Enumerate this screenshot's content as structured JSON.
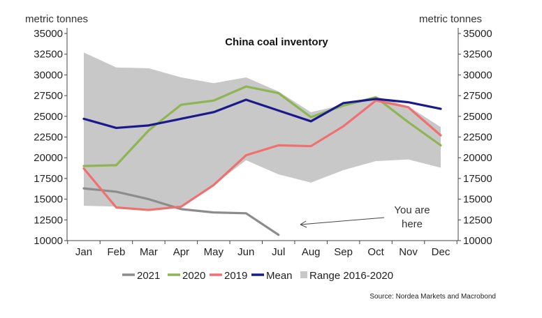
{
  "chart_data": {
    "type": "line",
    "title": "China coal inventory",
    "ylabel_left": "metric tonnes",
    "ylabel_right": "metric tonnes",
    "ylim": [
      10000,
      35000
    ],
    "yticks": [
      10000,
      12500,
      15000,
      17500,
      20000,
      22500,
      25000,
      27500,
      30000,
      32500,
      35000
    ],
    "categories": [
      "Jan",
      "Feb",
      "Mar",
      "Apr",
      "May",
      "Jun",
      "Jul",
      "Aug",
      "Sep",
      "Oct",
      "Nov",
      "Dec"
    ],
    "range": {
      "name": "Range 2016-2020",
      "color": "#c8c8c8",
      "high": [
        32700,
        30900,
        30800,
        29700,
        29000,
        29700,
        28000,
        25500,
        26400,
        27400,
        26200,
        23700
      ],
      "low": [
        14200,
        14100,
        13700,
        14100,
        16700,
        19700,
        18000,
        17000,
        18500,
        19600,
        19800,
        18800
      ]
    },
    "series": [
      {
        "name": "2021",
        "color": "#8c8c8c",
        "values": [
          16300,
          15900,
          15000,
          13800,
          13400,
          13300,
          10700,
          null,
          null,
          null,
          null,
          null
        ]
      },
      {
        "name": "2020",
        "color": "#8db552",
        "values": [
          19000,
          19100,
          23300,
          26400,
          26900,
          28600,
          27800,
          24900,
          26300,
          27300,
          24300,
          21500
        ]
      },
      {
        "name": "2019",
        "color": "#f07070",
        "values": [
          18700,
          14000,
          13700,
          14100,
          16700,
          20300,
          21500,
          21400,
          23800,
          26900,
          26100,
          22700
        ]
      },
      {
        "name": "Mean",
        "color": "#1a1a8c",
        "values": [
          24700,
          23600,
          23900,
          24700,
          25500,
          27000,
          25700,
          24400,
          26600,
          27100,
          26700,
          25900
        ]
      }
    ],
    "legend_order": [
      "2021",
      "2020",
      "2019",
      "Mean",
      "Range 2016-2020"
    ],
    "legend_position": "bottom",
    "annotation": {
      "line1": "You are",
      "line2": "here"
    },
    "source": "Source: Nordea Markets and Macrobond"
  }
}
